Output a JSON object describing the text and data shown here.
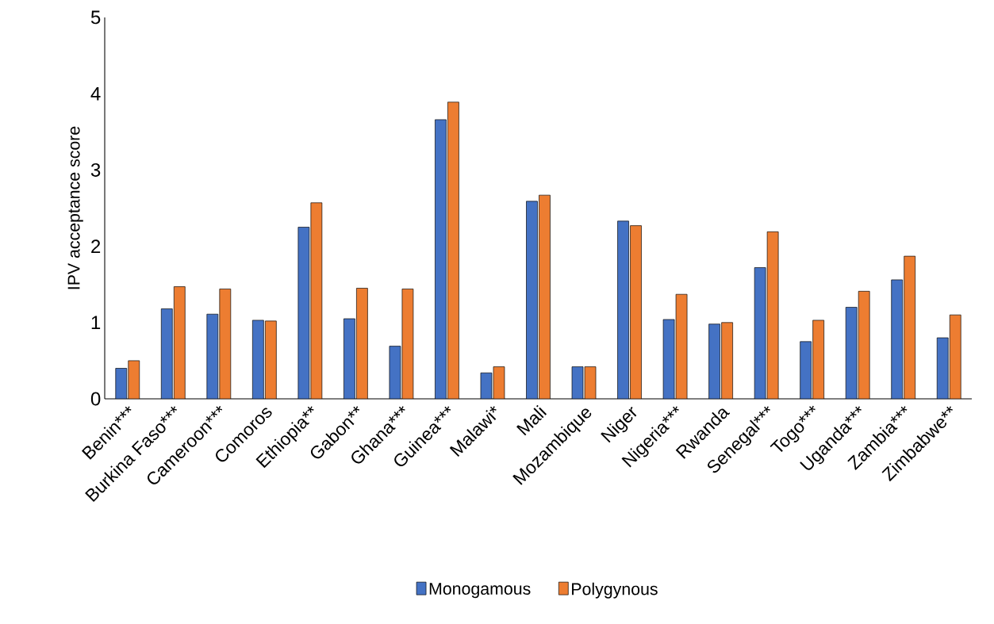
{
  "chart_data": {
    "type": "bar",
    "ylabel": "IPV acceptance score",
    "categories": [
      "Benin***",
      "Burkina Faso***",
      "Cameroon***",
      "Comoros",
      "Ethiopia**",
      "Gabon**",
      "Ghana***",
      "Guinea***",
      "Malawi*",
      "Mali",
      "Mozambique",
      "Niger",
      "Nigeria***",
      "Rwanda",
      "Senegal***",
      "Togo***",
      "Uganda***",
      "Zambia***",
      "Zimbabwe**"
    ],
    "series": [
      {
        "name": "Monogamous",
        "color": "#4472c4",
        "values": [
          0.4,
          1.18,
          1.11,
          1.03,
          2.25,
          1.05,
          0.69,
          3.66,
          0.34,
          2.59,
          0.42,
          2.33,
          1.04,
          0.98,
          1.72,
          0.75,
          1.2,
          1.56,
          0.8
        ]
      },
      {
        "name": "Polygynous",
        "color": "#ed7d31",
        "values": [
          0.5,
          1.47,
          1.44,
          1.02,
          2.57,
          1.45,
          1.44,
          3.89,
          0.42,
          2.67,
          0.42,
          2.27,
          1.37,
          1.0,
          2.19,
          1.03,
          1.41,
          1.87,
          1.1
        ]
      }
    ],
    "ylim": [
      0,
      5
    ],
    "yticks": [
      0,
      1,
      2,
      3,
      4,
      5
    ],
    "grid": false,
    "legend": "bottom"
  }
}
